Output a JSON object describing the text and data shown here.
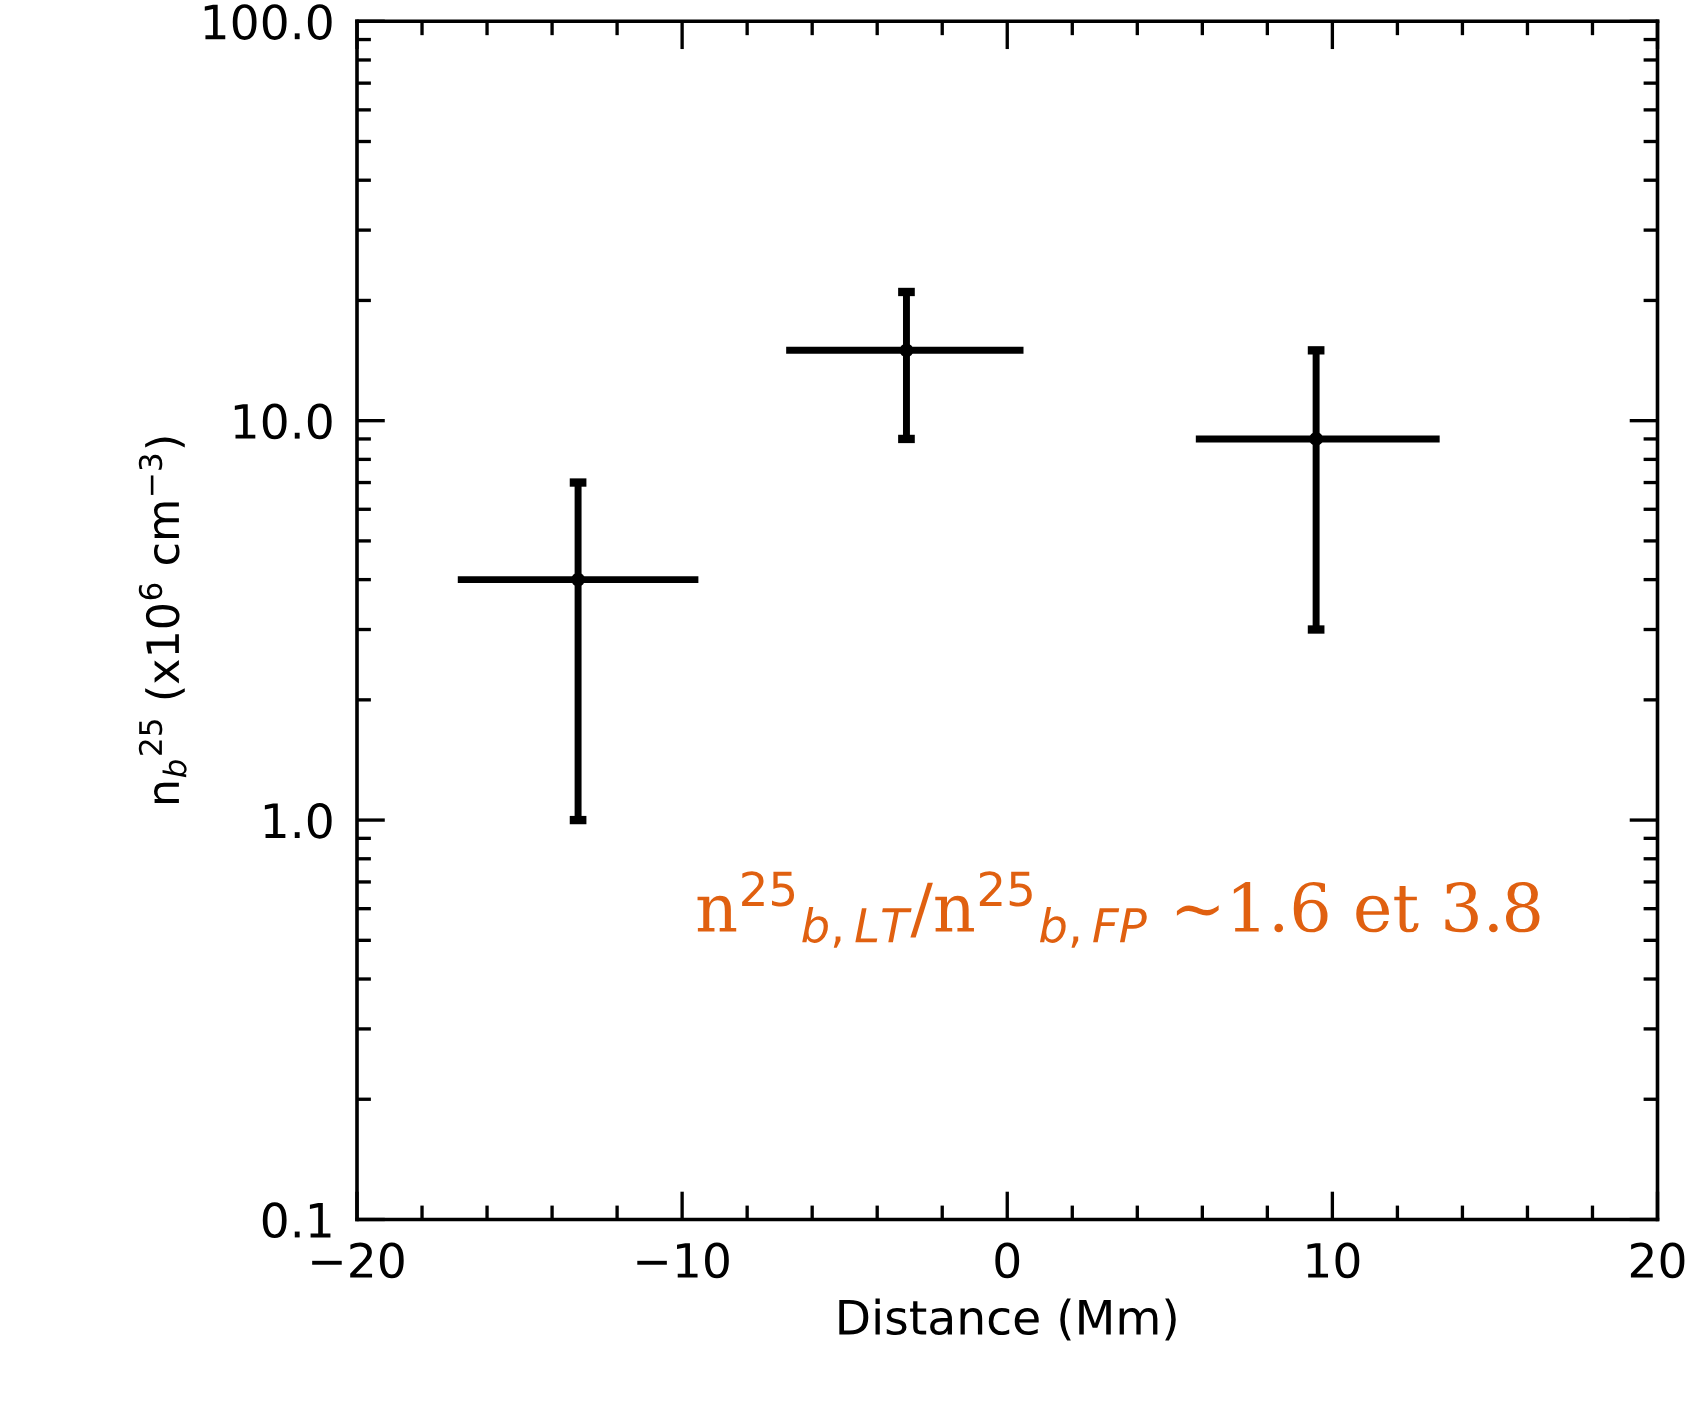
{
  "chart_data": {
    "type": "scatter",
    "xlabel": "Distance (Mm)",
    "ylabel": "n$_{b}$$^{25}$ (x10$^{6}$ cm$^{−3}$)",
    "x": [
      -13.2,
      -3.1,
      9.5
    ],
    "series": [
      {
        "color": "#000000",
        "values": [
          4.0,
          15,
          9.0
        ],
        "errors": [
          [
            1.0,
            7.0
          ],
          [
            9.0,
            21
          ],
          [
            3.0,
            15
          ]
        ],
        "xerrors": [
          [
            -16.9,
            -9.5
          ],
          [
            -6.8,
            0.5
          ],
          [
            5.8,
            13.3
          ]
        ]
      }
    ],
    "log": "y",
    "marker": "circle",
    "grid": false,
    "legend": false,
    "xlim": [
      -20,
      20
    ],
    "xticks": [
      {
        "value": -20,
        "label": "−20"
      },
      {
        "value": -10,
        "label": "−10"
      },
      0,
      10,
      20
    ],
    "ylim": [
      0.1,
      100
    ],
    "yticks": [
      0.1,
      {
        "value": 1,
        "label": "1.0"
      },
      {
        "value": 10,
        "label": "10.0"
      },
      {
        "value": 100,
        "label": "100.0"
      }
    ],
    "annotations": [
      "n$^{25}$$_{b,LT}$/n$^{25}$$_{b,FP}$ ~1.6 et 3.8"
    ]
  }
}
